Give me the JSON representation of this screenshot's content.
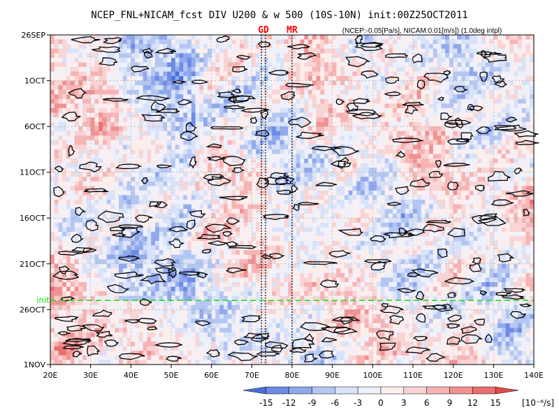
{
  "chart_data": {
    "type": "heatmap",
    "title": "NCEP_FNL+NICAM_fcst DIV U200 & w 500 (10S-10N) init:00Z25OCT2011",
    "subtitle": "(NCEP:-0.05[Pa/s], NICAM:0.01[m/s]) (1.0deg intpl)",
    "x_ticks": [
      "20E",
      "30E",
      "40E",
      "50E",
      "60E",
      "70E",
      "80E",
      "90E",
      "100E",
      "110E",
      "120E",
      "130E",
      "140E"
    ],
    "x_range": [
      20,
      140
    ],
    "y_ticks": [
      "26SEP",
      "1OCT",
      "6OCT",
      "11OCT",
      "16OCT",
      "21OCT",
      "26OCT",
      "1NOV"
    ],
    "y_tick_days": [
      0,
      5,
      10,
      15,
      20,
      25,
      30,
      36
    ],
    "init_label": "init",
    "init_day": 29,
    "markers": [
      {
        "label": "GD",
        "lons": [
          72.4,
          73.4
        ]
      },
      {
        "label": "MR",
        "lons": [
          80
        ]
      }
    ],
    "colorbar": {
      "ticks": [
        "-15",
        "-12",
        "-9",
        "-6",
        "-3",
        "0",
        "3",
        "6",
        "9",
        "12",
        "15"
      ],
      "unit": "[10⁻⁶/s]",
      "colors": [
        "#4a6fdc",
        "#6d8ae4",
        "#90a8ec",
        "#b4c6f2",
        "#d8e2f8",
        "#eef1fb",
        "#fdeeee",
        "#f9d4d4",
        "#f6b4b4",
        "#f09292",
        "#ea6f6f",
        "#e24c4c"
      ]
    },
    "grid": true
  }
}
